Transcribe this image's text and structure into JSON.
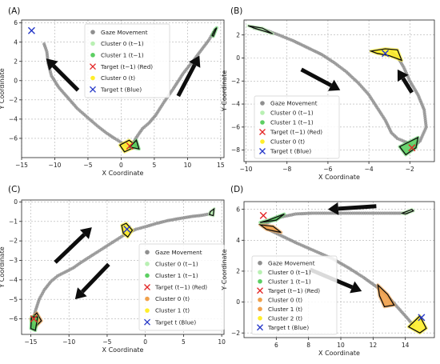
{
  "figure": {
    "background": "#ffffff"
  },
  "styles": {
    "gaze": "#8f8f8f",
    "cluster_prev0": "#b9f0b3",
    "cluster_prev1": "#5ccf62",
    "cluster_orange": "#f0a04a",
    "cluster_yellow": "#ffee2a",
    "target_red": "#e32626",
    "target_blue": "#2638c8",
    "arrow": "#0d0d0d",
    "outline": "#0d0d0d"
  },
  "chart_data": [
    {
      "panel": "(A)",
      "type": "scatter",
      "xlabel": "X Coordinate",
      "ylabel": "Y Coordinate",
      "xlim": [
        -15,
        15.5
      ],
      "ylim": [
        -8,
        6.3
      ],
      "xticks": [
        -15,
        -10,
        -5,
        0,
        5,
        10,
        15
      ],
      "yticks": [
        -6,
        -4,
        -2,
        0,
        2,
        4,
        6
      ],
      "grid": true,
      "legend": {
        "placement": "top-right",
        "entries": [
          {
            "label": "Gaze Movement",
            "marker": "dot",
            "color": "gaze"
          },
          {
            "label": "Cluster 0 (t−1)",
            "marker": "dot",
            "color": "cluster_prev0"
          },
          {
            "label": "Cluster 1 (t−1)",
            "marker": "dot",
            "color": "cluster_prev1"
          },
          {
            "label": "Target (t−1) (Red)",
            "marker": "x",
            "color": "target_red"
          },
          {
            "label": "Cluster 0 (t)",
            "marker": "dot",
            "color": "cluster_yellow"
          },
          {
            "label": "Target t (Blue)",
            "marker": "x",
            "color": "target_blue"
          }
        ]
      },
      "gaze_path": [
        [
          -11.6,
          3.8
        ],
        [
          -11.2,
          3.0
        ],
        [
          -11.0,
          1.8
        ],
        [
          -10.5,
          0.5
        ],
        [
          -9.4,
          -0.7
        ],
        [
          -8.0,
          -1.8
        ],
        [
          -6.6,
          -2.9
        ],
        [
          -5.1,
          -3.8
        ],
        [
          -3.6,
          -4.7
        ],
        [
          -2.3,
          -5.4
        ],
        [
          -1.0,
          -6.0
        ],
        [
          0.2,
          -6.5
        ],
        [
          1.0,
          -6.9
        ],
        [
          1.6,
          -6.7
        ],
        [
          2.3,
          -5.9
        ],
        [
          3.2,
          -5.0
        ],
        [
          4.2,
          -4.4
        ],
        [
          5.2,
          -3.6
        ],
        [
          6.4,
          -2.3
        ],
        [
          7.9,
          -0.8
        ],
        [
          9.4,
          0.8
        ],
        [
          10.8,
          2.0
        ],
        [
          12.1,
          3.2
        ],
        [
          13.2,
          4.2
        ],
        [
          13.9,
          5.0
        ]
      ],
      "clusters": [
        {
          "name": "Cluster 0 (t)",
          "color": "cluster_yellow",
          "polygon": [
            [
              0.5,
              -7.4
            ],
            [
              2.4,
              -6.8
            ],
            [
              1.2,
              -6.2
            ],
            [
              -0.2,
              -6.7
            ]
          ]
        },
        {
          "name": "Cluster 1 (t−1)",
          "color": "cluster_prev1",
          "polygon": [
            [
              1.3,
              -6.9
            ],
            [
              2.7,
              -7.1
            ],
            [
              2.3,
              -6.2
            ]
          ]
        },
        {
          "name": "Cluster 1 (t−1)",
          "color": "cluster_prev1",
          "polygon": [
            [
              13.9,
              4.6
            ],
            [
              14.4,
              5.5
            ],
            [
              14.1,
              5.3
            ],
            [
              13.7,
              4.7
            ]
          ]
        }
      ],
      "targets": [
        {
          "name": "Target (t−1)",
          "color": "target_red",
          "x": 1.3,
          "y": -6.8
        },
        {
          "name": "Target t",
          "color": "target_blue",
          "x": -13.5,
          "y": 5.2
        }
      ],
      "arrows": [
        {
          "from": [
            -6.5,
            -1.0
          ],
          "to": [
            -11.3,
            2.3
          ]
        },
        {
          "from": [
            8.6,
            -1.6
          ],
          "to": [
            11.8,
            2.6
          ]
        }
      ]
    },
    {
      "panel": "(B)",
      "type": "scatter",
      "xlabel": "X Coordinate",
      "ylabel": "Y Coordinate",
      "xlim": [
        -10.1,
        -0.8
      ],
      "ylim": [
        -9.0,
        3.3
      ],
      "xticks": [
        -10,
        -8,
        -6,
        -4,
        -2
      ],
      "yticks": [
        -8,
        -6,
        -4,
        -2,
        0,
        2
      ],
      "grid": true,
      "legend": {
        "placement": "bottom-left",
        "entries": [
          {
            "label": "Gaze Movement",
            "marker": "dot",
            "color": "gaze"
          },
          {
            "label": "Cluster 0 (t−1)",
            "marker": "dot",
            "color": "cluster_prev0"
          },
          {
            "label": "Cluster 1 (t−1)",
            "marker": "dot",
            "color": "cluster_prev1"
          },
          {
            "label": "Target (t−1) (Red)",
            "marker": "x",
            "color": "target_red"
          },
          {
            "label": "Cluster 0 (t)",
            "marker": "dot",
            "color": "cluster_yellow"
          },
          {
            "label": "Target t (Blue)",
            "marker": "x",
            "color": "target_blue"
          }
        ]
      },
      "gaze_path": [
        [
          -9.6,
          2.6
        ],
        [
          -9.0,
          2.4
        ],
        [
          -8.4,
          2.0
        ],
        [
          -7.7,
          1.5
        ],
        [
          -7.0,
          0.9
        ],
        [
          -6.3,
          0.3
        ],
        [
          -5.7,
          -0.4
        ],
        [
          -5.1,
          -1.2
        ],
        [
          -4.5,
          -2.2
        ],
        [
          -4.0,
          -3.2
        ],
        [
          -3.6,
          -4.3
        ],
        [
          -3.2,
          -5.4
        ],
        [
          -2.9,
          -6.5
        ],
        [
          -2.6,
          -7.0
        ],
        [
          -2.2,
          -7.3
        ],
        [
          -1.8,
          -7.7
        ],
        [
          -1.5,
          -7.2
        ],
        [
          -1.2,
          -6.0
        ],
        [
          -1.3,
          -4.5
        ],
        [
          -1.6,
          -3.2
        ],
        [
          -2.0,
          -2.0
        ],
        [
          -2.3,
          -0.8
        ],
        [
          -2.6,
          0.1
        ],
        [
          -2.9,
          0.5
        ]
      ],
      "clusters": [
        {
          "name": "Cluster 0 (t)",
          "color": "cluster_yellow",
          "polygon": [
            [
              -3.9,
              0.6
            ],
            [
              -3.2,
              0.8
            ],
            [
              -2.6,
              0.7
            ],
            [
              -2.4,
              -0.2
            ],
            [
              -3.0,
              0.2
            ],
            [
              -3.6,
              0.4
            ]
          ]
        },
        {
          "name": "Cluster 1 (t−1)",
          "color": "cluster_prev1",
          "polygon": [
            [
              -2.2,
              -8.4
            ],
            [
              -1.7,
              -7.8
            ],
            [
              -1.6,
              -6.9
            ],
            [
              -2.5,
              -7.7
            ]
          ]
        },
        {
          "name": "Cluster 0 (t−1)",
          "color": "cluster_prev0",
          "polygon": [
            [
              -9.9,
              2.8
            ],
            [
              -9.2,
              2.6
            ],
            [
              -8.7,
              2.1
            ],
            [
              -9.6,
              2.6
            ]
          ]
        }
      ],
      "targets": [
        {
          "name": "Target (t−1)",
          "color": "target_red",
          "x": -1.9,
          "y": -7.8
        },
        {
          "name": "Target t",
          "color": "target_blue",
          "x": -3.2,
          "y": 0.4
        }
      ],
      "arrows": [
        {
          "from": [
            -7.3,
            -1.0
          ],
          "to": [
            -5.4,
            -2.8
          ]
        },
        {
          "from": [
            -1.9,
            -3.0
          ],
          "to": [
            -2.6,
            -1.0
          ]
        }
      ]
    },
    {
      "panel": "(C)",
      "type": "scatter",
      "xlabel": "X Coordinate",
      "ylabel": "Y Coordinate",
      "xlim": [
        -16.2,
        10.3
      ],
      "ylim": [
        -6.8,
        0.1
      ],
      "xticks": [
        -15,
        -10,
        -5,
        0,
        5,
        10
      ],
      "yticks": [
        -6,
        -5,
        -4,
        -3,
        -2,
        -1,
        0
      ],
      "grid": true,
      "legend": {
        "placement": "bottom-right",
        "entries": [
          {
            "label": "Gaze Movement",
            "marker": "dot",
            "color": "gaze"
          },
          {
            "label": "Cluster 0 (t−1)",
            "marker": "dot",
            "color": "cluster_prev0"
          },
          {
            "label": "Cluster 1 (t−1)",
            "marker": "dot",
            "color": "cluster_prev1"
          },
          {
            "label": "Target (t−1) (Red)",
            "marker": "x",
            "color": "target_red"
          },
          {
            "label": "Cluster 0 (t)",
            "marker": "dot",
            "color": "cluster_orange"
          },
          {
            "label": "Cluster 1 (t)",
            "marker": "dot",
            "color": "cluster_yellow"
          },
          {
            "label": "Target t (Blue)",
            "marker": "x",
            "color": "target_blue"
          }
        ]
      },
      "gaze_path": [
        [
          -14.7,
          -6.1
        ],
        [
          -14.4,
          -5.6
        ],
        [
          -13.9,
          -5.0
        ],
        [
          -13.2,
          -4.5
        ],
        [
          -12.4,
          -4.1
        ],
        [
          -11.5,
          -3.8
        ],
        [
          -10.5,
          -3.6
        ],
        [
          -9.5,
          -3.4
        ],
        [
          -8.4,
          -3.1
        ],
        [
          -7.2,
          -2.8
        ],
        [
          -6.0,
          -2.5
        ],
        [
          -4.8,
          -2.2
        ],
        [
          -3.6,
          -1.9
        ],
        [
          -2.4,
          -1.6
        ],
        [
          -1.2,
          -1.4
        ],
        [
          0.2,
          -1.25
        ],
        [
          1.5,
          -1.1
        ],
        [
          3.0,
          -0.95
        ],
        [
          4.5,
          -0.85
        ],
        [
          6.0,
          -0.75
        ],
        [
          7.5,
          -0.68
        ],
        [
          8.6,
          -0.6
        ]
      ],
      "clusters": [
        {
          "name": "Cluster 0 (t)",
          "color": "cluster_orange",
          "polygon": [
            [
              -15.0,
              -6.0
            ],
            [
              -14.2,
              -5.7
            ],
            [
              -13.6,
              -6.1
            ],
            [
              -14.6,
              -6.5
            ]
          ]
        },
        {
          "name": "Cluster 1 (t)",
          "color": "cluster_yellow",
          "polygon": [
            [
              -3.1,
              -1.2
            ],
            [
              -2.5,
              -1.1
            ],
            [
              -1.7,
              -1.45
            ],
            [
              -2.3,
              -1.8
            ],
            [
              -2.9,
              -1.6
            ]
          ]
        },
        {
          "name": "Cluster 1 (t−1)",
          "color": "cluster_prev1",
          "polygon": [
            [
              -15.0,
              -6.5
            ],
            [
              -14.4,
              -6.6
            ],
            [
              -14.1,
              -5.9
            ],
            [
              -14.9,
              -5.9
            ]
          ]
        },
        {
          "name": "Cluster 0 (t−1)",
          "color": "cluster_prev0",
          "polygon": [
            [
              8.5,
              -0.5
            ],
            [
              9.0,
              -0.35
            ],
            [
              8.9,
              -0.7
            ],
            [
              8.4,
              -0.65
            ]
          ]
        }
      ],
      "targets": [
        {
          "name": "Target (t−1)",
          "color": "target_red",
          "x": -14.6,
          "y": -6.0
        },
        {
          "name": "Target t",
          "color": "target_blue",
          "x": -2.4,
          "y": -1.4
        }
      ],
      "arrows": [
        {
          "from": [
            -11.8,
            -3.1
          ],
          "to": [
            -7.0,
            -1.3
          ]
        },
        {
          "from": [
            -4.8,
            -3.2
          ],
          "to": [
            -9.2,
            -5.0
          ]
        }
      ]
    },
    {
      "panel": "(D)",
      "type": "scatter",
      "xlabel": "X Coordinate",
      "ylabel": "Y Coordinate",
      "xlim": [
        4.0,
        15.8
      ],
      "ylim": [
        -2.3,
        6.5
      ],
      "xticks": [
        6,
        8,
        10,
        12,
        14
      ],
      "yticks": [
        -2,
        0,
        2,
        4,
        6
      ],
      "grid": true,
      "legend": {
        "placement": "bottom-left",
        "entries": [
          {
            "label": "Gaze Movement",
            "marker": "dot",
            "color": "gaze"
          },
          {
            "label": "Cluster 0 (t−1)",
            "marker": "dot",
            "color": "cluster_prev0"
          },
          {
            "label": "Cluster 1 (t−1)",
            "marker": "dot",
            "color": "cluster_prev1"
          },
          {
            "label": "Target (t−1) (Red)",
            "marker": "x",
            "color": "target_red"
          },
          {
            "label": "Cluster 0 (t)",
            "marker": "dot",
            "color": "cluster_orange"
          },
          {
            "label": "Cluster 1 (t)",
            "marker": "dot",
            "color": "cluster_orange"
          },
          {
            "label": "Cluster 2 (t)",
            "marker": "dot",
            "color": "cluster_yellow"
          },
          {
            "label": "Target t (Blue)",
            "marker": "x",
            "color": "target_blue"
          }
        ]
      },
      "gaze_path": [
        [
          14.1,
          5.75
        ],
        [
          13.0,
          5.75
        ],
        [
          11.8,
          5.75
        ],
        [
          10.6,
          5.75
        ],
        [
          9.4,
          5.75
        ],
        [
          8.2,
          5.75
        ],
        [
          7.2,
          5.7
        ],
        [
          6.3,
          5.5
        ],
        [
          5.7,
          5.25
        ],
        [
          5.2,
          5.0
        ],
        [
          5.5,
          4.7
        ],
        [
          6.3,
          4.3
        ],
        [
          7.3,
          3.8
        ],
        [
          8.4,
          3.3
        ],
        [
          9.5,
          2.8
        ],
        [
          10.5,
          2.2
        ],
        [
          11.4,
          1.6
        ],
        [
          12.2,
          1.0
        ],
        [
          12.8,
          0.5
        ],
        [
          13.4,
          -0.2
        ],
        [
          14.0,
          -0.9
        ],
        [
          14.5,
          -1.5
        ]
      ],
      "clusters": [
        {
          "name": "Cluster 0 (t)",
          "color": "cluster_orange",
          "polygon": [
            [
              5.0,
              5.0
            ],
            [
              5.8,
              4.9
            ],
            [
              6.3,
              4.5
            ],
            [
              5.4,
              4.7
            ]
          ]
        },
        {
          "name": "Cluster 1 (t)",
          "color": "cluster_orange",
          "polygon": [
            [
              12.3,
              1.1
            ],
            [
              12.9,
              0.5
            ],
            [
              13.3,
              -0.2
            ],
            [
              12.7,
              -0.3
            ],
            [
              12.4,
              0.4
            ]
          ]
        },
        {
          "name": "Cluster 2 (t)",
          "color": "cluster_yellow",
          "polygon": [
            [
              14.2,
              -1.6
            ],
            [
              14.9,
              -0.9
            ],
            [
              15.3,
              -1.7
            ],
            [
              14.9,
              -2.0
            ]
          ]
        },
        {
          "name": "Cluster 1 (t−1)",
          "color": "cluster_prev1",
          "polygon": [
            [
              5.0,
              5.15
            ],
            [
              6.0,
              5.3
            ],
            [
              6.5,
              5.7
            ],
            [
              5.5,
              5.3
            ]
          ]
        },
        {
          "name": "Cluster 0 (t−1)",
          "color": "cluster_prev0",
          "polygon": [
            [
              14.0,
              5.7
            ],
            [
              14.5,
              5.9
            ],
            [
              14.4,
              6.0
            ],
            [
              13.8,
              5.75
            ]
          ]
        }
      ],
      "targets": [
        {
          "name": "Target (t−1)",
          "color": "target_red",
          "x": 5.2,
          "y": 5.6
        },
        {
          "name": "Target t",
          "color": "target_blue",
          "x": 15.0,
          "y": -1.0
        }
      ],
      "arrows": [
        {
          "from": [
            12.2,
            6.2
          ],
          "to": [
            9.2,
            6.0
          ]
        },
        {
          "from": [
            8.1,
            2.1
          ],
          "to": [
            11.3,
            0.7
          ]
        }
      ]
    }
  ]
}
